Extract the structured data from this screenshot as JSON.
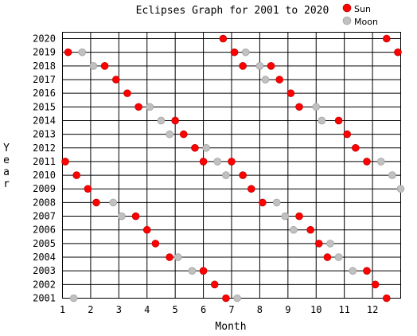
{
  "chart_data": {
    "type": "scatter",
    "title": "Eclipses Graph for 2001 to 2020",
    "xlabel": "Month",
    "ylabel": "Year",
    "xlim": [
      1,
      13
    ],
    "ylim": [
      2001,
      2020
    ],
    "x_ticks": [
      "1",
      "2",
      "3",
      "4",
      "5",
      "6",
      "7",
      "8",
      "9",
      "10",
      "11",
      "12"
    ],
    "y_ticks": [
      "2001",
      "2002",
      "2003",
      "2004",
      "2005",
      "2006",
      "2007",
      "2008",
      "2009",
      "2010",
      "2011",
      "2012",
      "2013",
      "2014",
      "2015",
      "2016",
      "2017",
      "2018",
      "2019",
      "2020"
    ],
    "legend_position": "top-right",
    "grid": true,
    "series": [
      {
        "name": "Sun",
        "color": "#ff0000",
        "points": [
          [
            6.7,
            2020
          ],
          [
            12.5,
            2020
          ],
          [
            1.2,
            2019
          ],
          [
            7.1,
            2019
          ],
          [
            12.9,
            2019
          ],
          [
            2.5,
            2018
          ],
          [
            7.4,
            2018
          ],
          [
            8.4,
            2018
          ],
          [
            2.9,
            2017
          ],
          [
            8.7,
            2017
          ],
          [
            3.3,
            2016
          ],
          [
            9.1,
            2016
          ],
          [
            3.7,
            2015
          ],
          [
            9.4,
            2015
          ],
          [
            5.0,
            2014
          ],
          [
            10.8,
            2014
          ],
          [
            5.3,
            2013
          ],
          [
            11.1,
            2013
          ],
          [
            5.7,
            2012
          ],
          [
            11.4,
            2012
          ],
          [
            1.1,
            2011
          ],
          [
            6.0,
            2011
          ],
          [
            7.0,
            2011
          ],
          [
            11.8,
            2011
          ],
          [
            1.5,
            2010
          ],
          [
            7.4,
            2010
          ],
          [
            1.9,
            2009
          ],
          [
            7.7,
            2009
          ],
          [
            2.2,
            2008
          ],
          [
            8.1,
            2008
          ],
          [
            3.6,
            2007
          ],
          [
            9.4,
            2007
          ],
          [
            4.0,
            2006
          ],
          [
            9.8,
            2006
          ],
          [
            4.3,
            2005
          ],
          [
            10.1,
            2005
          ],
          [
            4.8,
            2004
          ],
          [
            10.4,
            2004
          ],
          [
            6.0,
            2003
          ],
          [
            11.8,
            2003
          ],
          [
            6.4,
            2002
          ],
          [
            12.1,
            2002
          ],
          [
            6.8,
            2001
          ],
          [
            12.5,
            2001
          ]
        ]
      },
      {
        "name": "Moon",
        "color": "#c0c0c0",
        "points": [
          [
            7.5,
            2019
          ],
          [
            1.7,
            2019
          ],
          [
            2.1,
            2018
          ],
          [
            8.0,
            2018
          ],
          [
            8.2,
            2017
          ],
          [
            4.1,
            2015
          ],
          [
            10.0,
            2015
          ],
          [
            4.5,
            2014
          ],
          [
            10.2,
            2014
          ],
          [
            4.8,
            2013
          ],
          [
            6.1,
            2012
          ],
          [
            6.5,
            2011
          ],
          [
            12.3,
            2011
          ],
          [
            6.8,
            2010
          ],
          [
            12.7,
            2010
          ],
          [
            13.0,
            2009
          ],
          [
            2.8,
            2008
          ],
          [
            8.6,
            2008
          ],
          [
            3.1,
            2007
          ],
          [
            8.9,
            2007
          ],
          [
            9.2,
            2006
          ],
          [
            5.1,
            2004
          ],
          [
            10.8,
            2004
          ],
          [
            10.5,
            2005
          ],
          [
            5.6,
            2003
          ],
          [
            11.3,
            2003
          ],
          [
            1.4,
            2001
          ],
          [
            7.2,
            2001
          ]
        ]
      }
    ]
  }
}
